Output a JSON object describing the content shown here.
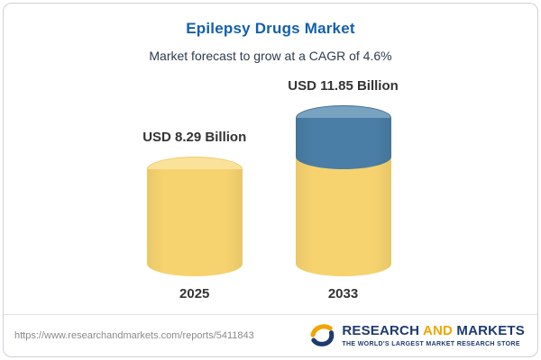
{
  "header": {
    "title": "Epilepsy Drugs Market",
    "subtitle": "Market forecast to grow at a CAGR of 4.6%"
  },
  "chart_data": {
    "type": "bar",
    "subtype": "stacked-cylinder-infographic",
    "title": "Epilepsy Drugs Market",
    "categories": [
      "2025",
      "2033"
    ],
    "values": [
      8.29,
      11.85
    ],
    "unit": "USD Billion",
    "bar_labels": [
      "USD 8.29 Billion",
      "USD 11.85 Billion"
    ],
    "cagr_percent": 4.6,
    "ylim": [
      0,
      12
    ],
    "grid": "off",
    "legend": "none",
    "colors": {
      "base_segment": "#f6d36f",
      "base_segment_top": "#fae29b",
      "growth_segment": "#4a7ea6",
      "growth_segment_top": "#77a2c0"
    },
    "notes": "2033 cylinder shows base value in yellow with growth increment over 2025 stacked in blue on top"
  },
  "footer": {
    "url": "https://www.researchandmarkets.com/reports/5411843",
    "logo": {
      "research": "RESEARCH",
      "and": "AND",
      "markets": "MARKETS",
      "tagline": "THE WORLD'S LARGEST MARKET RESEARCH STORE"
    }
  },
  "colors": {
    "title_accent": "#1460ad",
    "text_dark": "#333333",
    "logo_navy": "#1e3a6e",
    "logo_orange": "#f0a500",
    "card_border": "#cdd2d6"
  }
}
